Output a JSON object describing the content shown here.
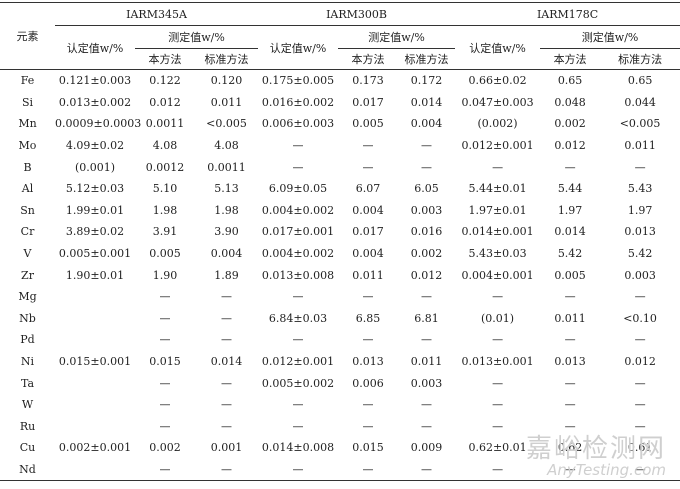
{
  "table": {
    "header": {
      "element": "元素",
      "groups": [
        {
          "name": "IARM345A",
          "certified": "认定值w/%",
          "measured": "测定值w/%",
          "methods": [
            "本方法",
            "标准方法"
          ]
        },
        {
          "name": "IARM300B",
          "certified": "认定值w/%",
          "measured": "测定值w/%",
          "methods": [
            "本方法",
            "标准方法"
          ]
        },
        {
          "name": "IARM178C",
          "certified": "认定值w/%",
          "measured": "测定值w/%",
          "methods": [
            "本方法",
            "标准方法"
          ]
        }
      ]
    },
    "rows": [
      [
        "Fe",
        "0.121±0.003",
        "0.122",
        "0.120",
        "0.175±0.005",
        "0.173",
        "0.172",
        "0.66±0.02",
        "0.65",
        "0.65"
      ],
      [
        "Si",
        "0.013±0.002",
        "0.012",
        "0.011",
        "0.016±0.002",
        "0.017",
        "0.014",
        "0.047±0.003",
        "0.048",
        "0.044"
      ],
      [
        "Mn",
        "0.0009±0.0003",
        "0.0011",
        "<0.005",
        "0.006±0.003",
        "0.005",
        "0.004",
        "(0.002)",
        "0.002",
        "<0.005"
      ],
      [
        "Mo",
        "4.09±0.02",
        "4.08",
        "4.08",
        "—",
        "—",
        "—",
        "0.012±0.001",
        "0.012",
        "0.011"
      ],
      [
        "B",
        "(0.001)",
        "0.0012",
        "0.0011",
        "—",
        "—",
        "—",
        "—",
        "—",
        "—"
      ],
      [
        "Al",
        "5.12±0.03",
        "5.10",
        "5.13",
        "6.09±0.05",
        "6.07",
        "6.05",
        "5.44±0.01",
        "5.44",
        "5.43"
      ],
      [
        "Sn",
        "1.99±0.01",
        "1.98",
        "1.98",
        "0.004±0.002",
        "0.004",
        "0.003",
        "1.97±0.01",
        "1.97",
        "1.97"
      ],
      [
        "Cr",
        "3.89±0.02",
        "3.91",
        "3.90",
        "0.017±0.001",
        "0.017",
        "0.016",
        "0.014±0.001",
        "0.014",
        "0.013"
      ],
      [
        "V",
        "0.005±0.001",
        "0.005",
        "0.004",
        "0.004±0.002",
        "0.004",
        "0.002",
        "5.43±0.03",
        "5.42",
        "5.42"
      ],
      [
        "Zr",
        "1.90±0.01",
        "1.90",
        "1.89",
        "0.013±0.008",
        "0.011",
        "0.012",
        "0.004±0.001",
        "0.005",
        "0.003"
      ],
      [
        "Mg",
        null,
        "—",
        "—",
        "—",
        "—",
        "—",
        "—",
        "—",
        "—"
      ],
      [
        "Nb",
        null,
        "—",
        "—",
        "6.84±0.03",
        "6.85",
        "6.81",
        "(0.01)",
        "0.011",
        "<0.10"
      ],
      [
        "Pd",
        null,
        "—",
        "—",
        "—",
        "—",
        "—",
        "—",
        "—",
        "—"
      ],
      [
        "Ni",
        "0.015±0.001",
        "0.015",
        "0.014",
        "0.012±0.001",
        "0.013",
        "0.011",
        "0.013±0.001",
        "0.013",
        "0.012"
      ],
      [
        "Ta",
        null,
        "—",
        "—",
        "0.005±0.002",
        "0.006",
        "0.003",
        "—",
        "—",
        "—"
      ],
      [
        "W",
        null,
        "—",
        "—",
        "—",
        "—",
        "—",
        "—",
        "—",
        "—"
      ],
      [
        "Ru",
        null,
        "—",
        "—",
        "—",
        "—",
        "—",
        "—",
        "—",
        "—"
      ],
      [
        "Cu",
        "0.002±0.001",
        "0.002",
        "0.001",
        "0.014±0.008",
        "0.015",
        "0.009",
        "0.62±0.01",
        "0.62",
        "0.61"
      ],
      [
        "Nd",
        null,
        "—",
        "—",
        "—",
        "—",
        "—",
        "—",
        "—",
        "—"
      ]
    ]
  },
  "watermark": {
    "cn": "嘉峪检测网",
    "en": "AnyTesting.com"
  }
}
